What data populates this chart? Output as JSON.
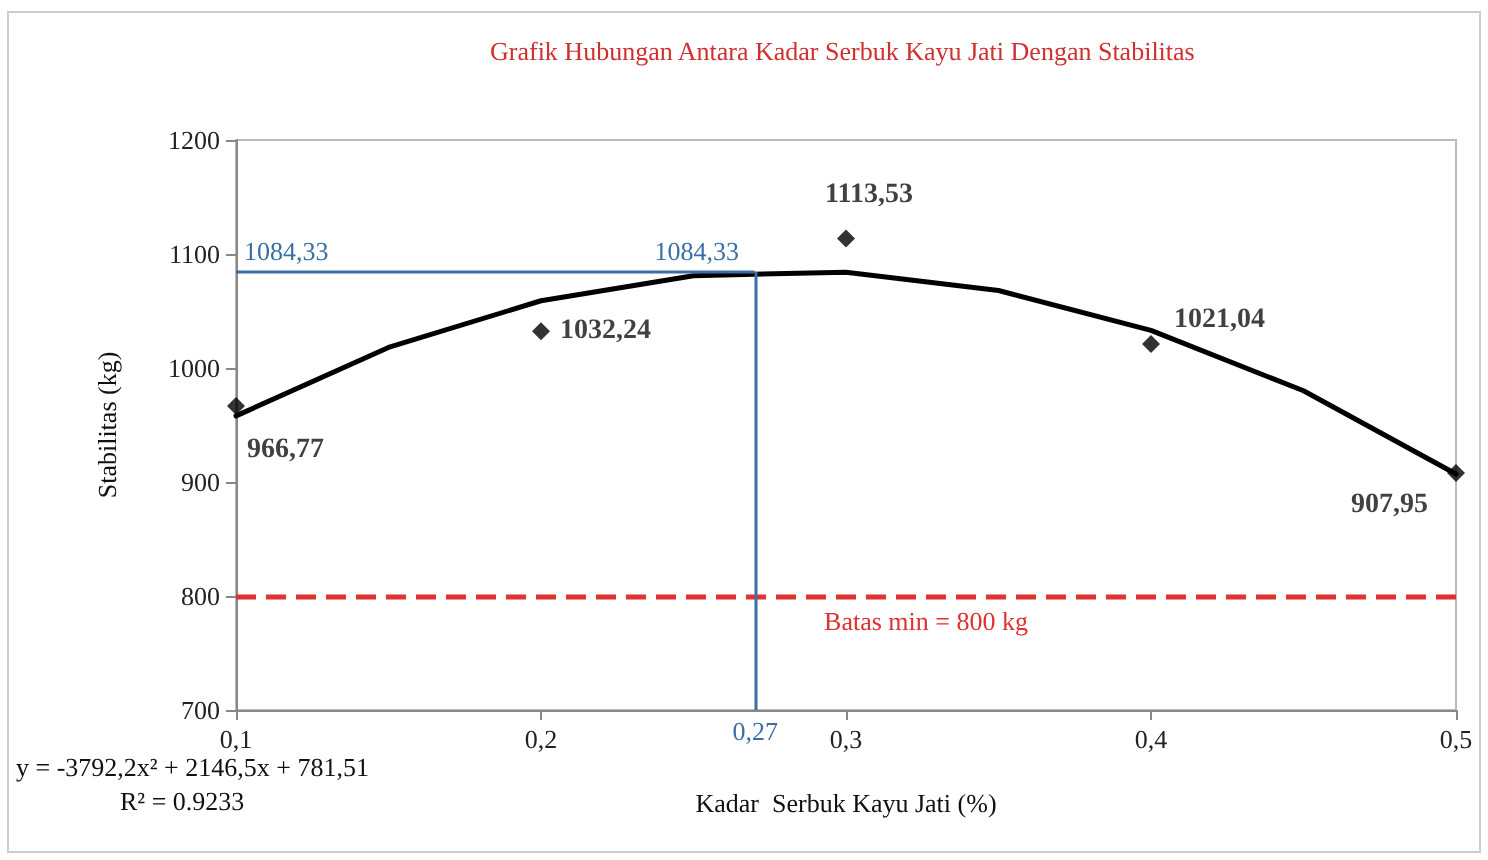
{
  "chart_data": {
    "type": "scatter",
    "title": "Grafik Hubungan Antara Kadar Serbuk Kayu Jati Dengan Stabilitas",
    "xlabel": "Kadar  Serbuk Kayu Jati (%)",
    "ylabel": "Stabilitas (kg)",
    "x": [
      0.1,
      0.2,
      0.3,
      0.4,
      0.5
    ],
    "series": [
      {
        "color": "#000000",
        "marker": "diamond",
        "values": [
          966.77,
          1032.24,
          1113.53,
          1021.04,
          907.95
        ],
        "value_labels": [
          "966,77",
          "1032,24",
          "1113,53",
          "1021,04",
          "907,95"
        ]
      },
      {
        "type": "line",
        "color": "#000000",
        "marker": "none",
        "line_style": "solid",
        "x": [
          0.1,
          0.15,
          0.2,
          0.25,
          0.3,
          0.35,
          0.4,
          0.45,
          0.5
        ],
        "values": [
          958,
          1018,
          1059,
          1081,
          1084,
          1068,
          1033,
          980,
          907
        ]
      }
    ],
    "xlim": [
      0.1,
      0.5
    ],
    "xticks": [
      {
        "value": 0.1,
        "label": "0,1"
      },
      {
        "value": 0.2,
        "label": "0,2"
      },
      {
        "value": 0.3,
        "label": "0,3"
      },
      {
        "value": 0.4,
        "label": "0,4"
      },
      {
        "value": 0.5,
        "label": "0,5"
      }
    ],
    "ylim": [
      700,
      1200
    ],
    "yticks": [
      700,
      800,
      900,
      1000,
      1100,
      1200
    ],
    "grid": false,
    "ref_lines": [
      {
        "axis": "y",
        "value": 800,
        "label": "Batas min = 800 kg",
        "color": "#e03030",
        "line_style": "dashed"
      },
      {
        "axis": "y",
        "value": 1084.33,
        "label": "1084,33",
        "color": "#3a6ea5",
        "line_style": "solid"
      },
      {
        "axis": "x",
        "value": 0.27,
        "label": "0,27",
        "color": "#3a6ea5",
        "line_style": "solid"
      }
    ],
    "annotations": [
      {
        "text": "1084,33",
        "x": 0.27,
        "y": 1084.33
      },
      "y = -3792,2x² + 2146,5x + 781,51",
      "R² = 0.9233"
    ]
  }
}
